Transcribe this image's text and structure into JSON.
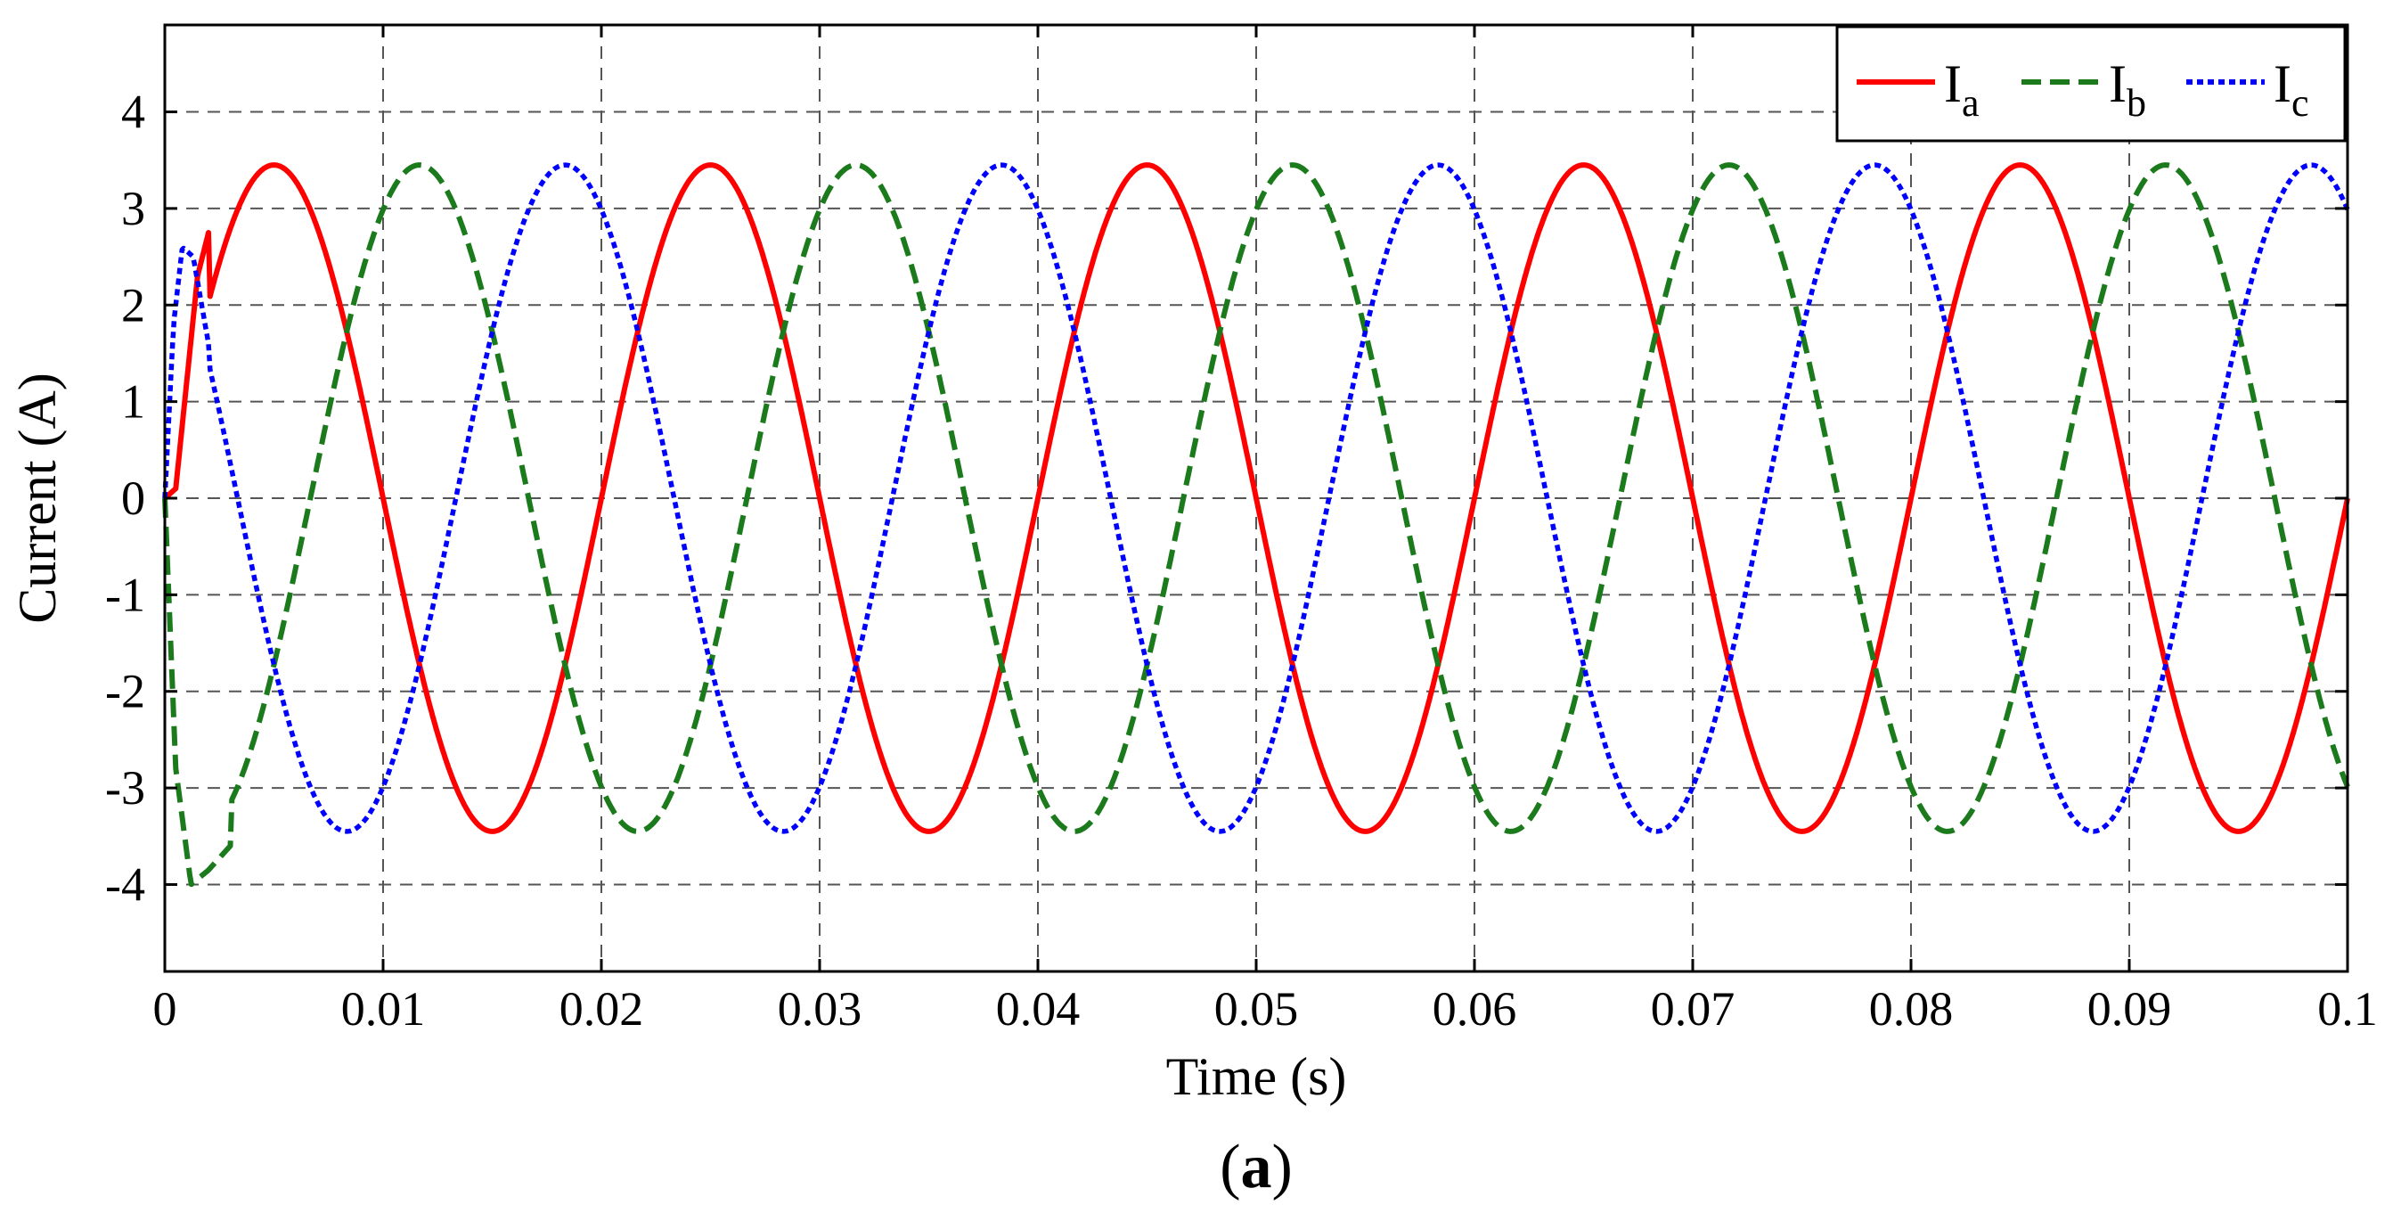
{
  "chart_data": {
    "type": "line",
    "xlabel": "Time (s)",
    "ylabel": "Current (A)",
    "xlim": [
      0,
      0.1
    ],
    "ylim": [
      -4.9,
      4.9
    ],
    "xticks": [
      "0",
      "0.01",
      "0.02",
      "0.03",
      "0.04",
      "0.05",
      "0.06",
      "0.07",
      "0.08",
      "0.09",
      "0.1"
    ],
    "yticks": [
      "4",
      "3",
      "2",
      "1",
      "0",
      "-1",
      "-2",
      "-3",
      "-4"
    ],
    "grid": true,
    "legend_position": "top-right",
    "caption": {
      "open": "(",
      "letter": "a",
      "close": ")"
    },
    "series": [
      {
        "legend_main": "I",
        "legend_sub": "a",
        "color": "#ff0000",
        "style": "solid",
        "amplitude": 3.45,
        "frequency_hz": 50,
        "phase_deg": 0,
        "x": [
          0,
          0.0005,
          0.001,
          0.0015,
          0.002,
          0.003,
          0.005,
          0.007,
          0.01,
          0.015,
          0.02,
          0.025,
          0.03,
          0.035,
          0.04,
          0.045,
          0.05,
          0.055,
          0.06,
          0.065,
          0.07,
          0.075,
          0.08,
          0.085,
          0.09,
          0.095,
          0.1
        ],
        "y": [
          0,
          0.1,
          1.2,
          2.3,
          2.75,
          3.25,
          3.5,
          3.3,
          0,
          -3.45,
          0,
          3.45,
          0,
          -3.45,
          0,
          3.45,
          0,
          -3.45,
          0,
          3.45,
          0,
          -3.45,
          0,
          3.45,
          0,
          -3.45,
          0
        ]
      },
      {
        "legend_main": "I",
        "legend_sub": "b",
        "color": "#1b7a1b",
        "style": "dashed",
        "amplitude": 3.45,
        "frequency_hz": 50,
        "phase_deg": -120,
        "x": [
          0,
          0.0005,
          0.0012,
          0.002,
          0.003,
          0.005,
          0.0083,
          0.0117,
          0.0167,
          0.0217,
          0.0267,
          0.0317,
          0.0367,
          0.0417,
          0.0467,
          0.0517,
          0.0567,
          0.0617,
          0.0667,
          0.0717,
          0.0767,
          0.0817,
          0.0867,
          0.0917,
          0.0967,
          0.1
        ],
        "y": [
          0,
          -2.8,
          -4.0,
          -3.85,
          -3.6,
          -2.3,
          0,
          3.45,
          0,
          -3.45,
          0,
          3.45,
          0,
          -3.45,
          0,
          3.45,
          0,
          -3.45,
          0,
          3.45,
          0,
          -3.45,
          0,
          3.45,
          0,
          -2.99
        ]
      },
      {
        "legend_main": "I",
        "legend_sub": "c",
        "color": "#0000ff",
        "style": "dotted",
        "amplitude": 3.45,
        "frequency_hz": 50,
        "phase_deg": 120,
        "x": [
          0,
          0.0004,
          0.0008,
          0.0013,
          0.002,
          0.003,
          0.005,
          0.0083,
          0.0133,
          0.0183,
          0.0233,
          0.0283,
          0.0333,
          0.0383,
          0.0433,
          0.0483,
          0.0533,
          0.0583,
          0.0633,
          0.0683,
          0.0733,
          0.0783,
          0.0833,
          0.0883,
          0.0933,
          0.0983,
          0.1
        ],
        "y": [
          0,
          1.8,
          2.6,
          2.5,
          1.6,
          0.5,
          -1.8,
          -3.45,
          0,
          3.45,
          0,
          -3.45,
          0,
          3.45,
          0,
          -3.45,
          0,
          3.45,
          0,
          -3.45,
          0,
          3.45,
          0,
          -3.45,
          0,
          3.45,
          2.99
        ]
      }
    ]
  }
}
